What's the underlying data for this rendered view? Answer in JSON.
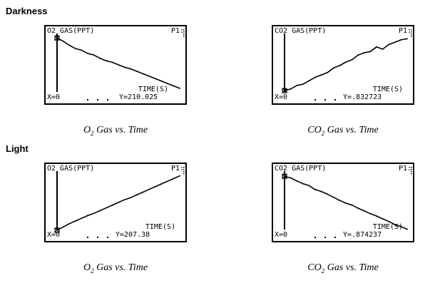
{
  "sections": {
    "darkness": "Darkness",
    "light": "Light"
  },
  "chart_data": [
    {
      "type": "line",
      "title": "O2 Gas vs. Time",
      "ylabel": "O2 GAS(PPT)",
      "xlabel": "TIME(S)",
      "plot_label": "P1:",
      "cursor": {
        "x_text": "X=0",
        "y_text": "Y=210.025"
      },
      "x": [
        0,
        5,
        10,
        15,
        20,
        25,
        30,
        35,
        40,
        45,
        50,
        55,
        60,
        65,
        70,
        75,
        80,
        85,
        90,
        95,
        100
      ],
      "y": [
        210.0,
        209.8,
        209.55,
        209.35,
        209.25,
        209.05,
        208.95,
        208.75,
        208.6,
        208.5,
        208.35,
        208.2,
        208.1,
        207.95,
        207.8,
        207.65,
        207.5,
        207.35,
        207.2,
        207.05,
        206.9
      ],
      "xlim": [
        0,
        100
      ],
      "ylim": [
        206.5,
        210.1
      ]
    },
    {
      "type": "line",
      "title": "CO2 Gas vs. Time",
      "ylabel": "CO2 GAS(PPT)",
      "xlabel": "TIME(S)",
      "plot_label": "P1:",
      "cursor": {
        "x_text": "X=0",
        "y_text": "Y=.832723"
      },
      "x": [
        0,
        5,
        10,
        15,
        20,
        25,
        30,
        35,
        40,
        45,
        50,
        55,
        60,
        65,
        70,
        75,
        80,
        85,
        90,
        95,
        100
      ],
      "y": [
        0.833,
        0.84,
        0.855,
        0.86,
        0.875,
        0.89,
        0.9,
        0.91,
        0.93,
        0.94,
        0.955,
        0.965,
        0.985,
        0.995,
        1.0,
        1.02,
        1.01,
        1.03,
        1.04,
        1.05,
        1.055
      ],
      "xlim": [
        0,
        100
      ],
      "ylim": [
        0.815,
        1.065
      ]
    },
    {
      "type": "line",
      "title": "O2 Gas vs. Time",
      "ylabel": "O2 GAS(PPT)",
      "xlabel": "TIME(S)",
      "plot_label": "P1:",
      "cursor": {
        "x_text": "X=0",
        "y_text": "Y=207.38"
      },
      "x": [
        0,
        5,
        10,
        15,
        20,
        25,
        30,
        35,
        40,
        45,
        50,
        55,
        60,
        65,
        70,
        75,
        80,
        85,
        90,
        95,
        100
      ],
      "y": [
        207.38,
        207.5,
        207.62,
        207.72,
        207.82,
        207.92,
        208.0,
        208.1,
        208.2,
        208.3,
        208.4,
        208.5,
        208.58,
        208.68,
        208.78,
        208.88,
        208.98,
        209.08,
        209.18,
        209.28,
        209.38
      ],
      "xlim": [
        0,
        100
      ],
      "ylim": [
        207.3,
        209.45
      ]
    },
    {
      "type": "line",
      "title": "CO2 Gas vs. Time",
      "ylabel": "CO2 GAS(PPT)",
      "xlabel": "TIME(S)",
      "plot_label": "P1:",
      "cursor": {
        "x_text": "X=0",
        "y_text": "Y=.874237"
      },
      "x": [
        0,
        5,
        10,
        15,
        20,
        25,
        30,
        35,
        40,
        45,
        50,
        55,
        60,
        65,
        70,
        75,
        80,
        85,
        90,
        95,
        100
      ],
      "y": [
        0.874,
        0.87,
        0.862,
        0.855,
        0.85,
        0.84,
        0.835,
        0.828,
        0.82,
        0.812,
        0.805,
        0.8,
        0.792,
        0.785,
        0.778,
        0.772,
        0.765,
        0.758,
        0.75,
        0.745,
        0.738
      ],
      "xlim": [
        0,
        100
      ],
      "ylim": [
        0.73,
        0.88
      ]
    }
  ]
}
